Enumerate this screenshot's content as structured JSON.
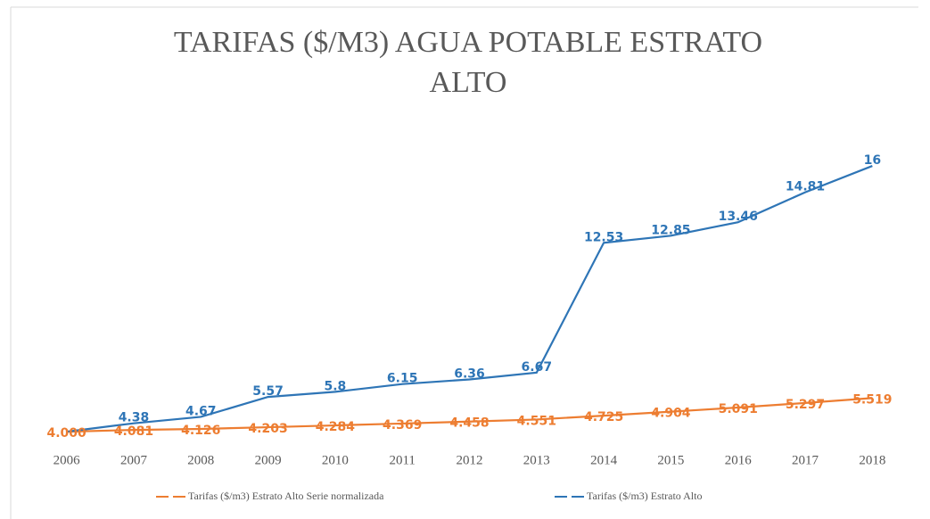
{
  "chart_data": {
    "type": "line",
    "title": "TARIFAS ($/M3) AGUA POTABLE ESTRATO ALTO",
    "categories": [
      "2006",
      "2007",
      "2008",
      "2009",
      "2010",
      "2011",
      "2012",
      "2013",
      "2014",
      "2015",
      "2016",
      "2017",
      "2018"
    ],
    "ylim": [
      3.36,
      17.05
    ],
    "legend": "bottom",
    "series": [
      {
        "name": "Tarifas ($/m3) Estrato Alto Serie normalizada",
        "color": "#ed7d31",
        "values": [
          4.0,
          4.081,
          4.126,
          4.203,
          4.284,
          4.369,
          4.458,
          4.551,
          4.725,
          4.904,
          5.091,
          5.297,
          5.519
        ],
        "value_labels": [
          "4.000",
          "4.081",
          "4.126",
          "4.203",
          "4.284",
          "4.369",
          "4.458",
          "4.551",
          "4.725",
          "4.904",
          "5.091",
          "5.297",
          "5.519"
        ]
      },
      {
        "name": "Tarifas ($/m3)  Estrato Alto",
        "color": "#2e75b6",
        "values": [
          4,
          4.38,
          4.67,
          5.57,
          5.8,
          6.15,
          6.36,
          6.67,
          12.53,
          12.85,
          13.46,
          14.81,
          16
        ],
        "value_labels": [
          null,
          "4.38",
          "4.67",
          "5.57",
          "5.8",
          "6.15",
          "6.36",
          "6.67",
          "12.53",
          "12.85",
          "13.46",
          "14.81",
          "16"
        ]
      }
    ]
  }
}
